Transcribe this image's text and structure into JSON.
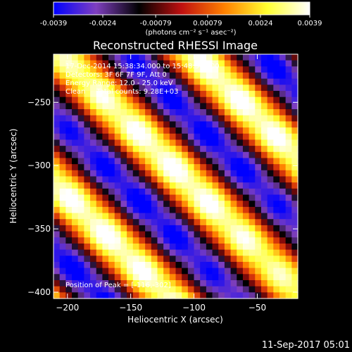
{
  "colorbar": {
    "ticks": [
      "-0.0039",
      "-0.0024",
      "-0.00079",
      "0.00079",
      "0.0024",
      "0.0039"
    ],
    "tick_values": [
      -0.0039,
      -0.0024,
      -0.00079,
      0.00079,
      0.0024,
      0.0039
    ],
    "range": [
      -0.0039,
      0.0039
    ],
    "unit_label": "(photons cm⁻² s⁻¹ asec⁻²)",
    "colors": [
      "#0000ff",
      "#7f3fbf",
      "#000000",
      "#c01010",
      "#ff8000",
      "#ffff30",
      "#ffffff"
    ]
  },
  "header": {
    "title": "Reconstructed RHESSI Image",
    "time_range": "17-Dec-2014 15:38:34.000 to 15:48:34.000",
    "detectors": "Detectors: 3F 6F 7F 9F, Att 0",
    "energy": "Energy Range: 12.0 - 25.0 keV",
    "clean": "Clean     Total counts: 9.28E+03",
    "peak": "Position of Peak = [-116,-302]"
  },
  "footer": {
    "timestamp": "11-Sep-2017 05:01"
  },
  "chart_data": {
    "type": "heatmap",
    "title": "Reconstructed RHESSI Image",
    "xlabel": "Heliocentric X (arcsec)",
    "ylabel": "Heliocentric Y (arcsec)",
    "xlim": [
      -211,
      -18
    ],
    "ylim": [
      -405,
      -212
    ],
    "x_ticks": [
      -200,
      -150,
      -100,
      -50
    ],
    "y_ticks": [
      -250,
      -300,
      -350,
      -400
    ],
    "x_tick_labels": [
      "−200",
      "−150",
      "−100",
      "−50"
    ],
    "y_tick_labels": [
      "−250",
      "−300",
      "−350",
      "−400"
    ],
    "peak_position": [
      -116,
      -302
    ],
    "peak_value": 0.0039,
    "fringe_direction": "diagonal, upper-left to lower-right",
    "fringe_spacing_arcsec": 75
  }
}
